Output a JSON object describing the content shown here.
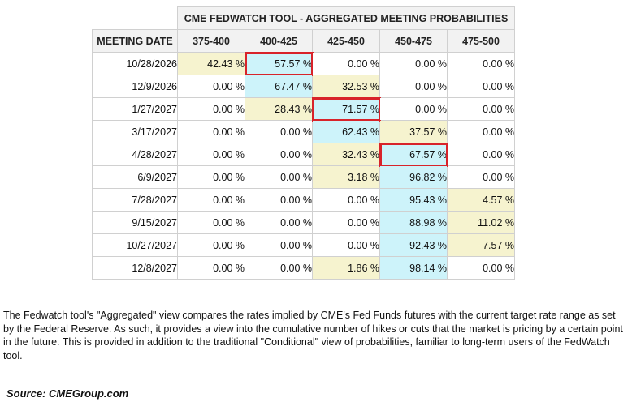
{
  "table": {
    "title": "CME FEDWATCH TOOL - AGGREGATED MEETING PROBABILITIES",
    "date_header": "MEETING DATE",
    "columns": [
      "375-400",
      "400-425",
      "425-450",
      "450-475",
      "475-500"
    ],
    "rows": [
      {
        "date": "10/28/2026",
        "values": [
          "42.43 %",
          "57.57 %",
          "0.00 %",
          "0.00 %",
          "0.00 %"
        ],
        "shade": [
          "low",
          "peak",
          "",
          "",
          ""
        ],
        "highlight": 1
      },
      {
        "date": "12/9/2026",
        "values": [
          "0.00 %",
          "67.47 %",
          "32.53 %",
          "0.00 %",
          "0.00 %"
        ],
        "shade": [
          "",
          "peak",
          "low",
          "",
          ""
        ],
        "highlight": -1
      },
      {
        "date": "1/27/2027",
        "values": [
          "0.00 %",
          "28.43 %",
          "71.57 %",
          "0.00 %",
          "0.00 %"
        ],
        "shade": [
          "",
          "low",
          "peak",
          "",
          ""
        ],
        "highlight": 2
      },
      {
        "date": "3/17/2027",
        "values": [
          "0.00 %",
          "0.00 %",
          "62.43 %",
          "37.57 %",
          "0.00 %"
        ],
        "shade": [
          "",
          "",
          "peak",
          "low",
          ""
        ],
        "highlight": -1
      },
      {
        "date": "4/28/2027",
        "values": [
          "0.00 %",
          "0.00 %",
          "32.43 %",
          "67.57 %",
          "0.00 %"
        ],
        "shade": [
          "",
          "",
          "low",
          "peak",
          ""
        ],
        "highlight": 3
      },
      {
        "date": "6/9/2027",
        "values": [
          "0.00 %",
          "0.00 %",
          "3.18 %",
          "96.82 %",
          "0.00 %"
        ],
        "shade": [
          "",
          "",
          "low",
          "peak",
          ""
        ],
        "highlight": -1
      },
      {
        "date": "7/28/2027",
        "values": [
          "0.00 %",
          "0.00 %",
          "0.00 %",
          "95.43 %",
          "4.57 %"
        ],
        "shade": [
          "",
          "",
          "",
          "peak",
          "low"
        ],
        "highlight": -1
      },
      {
        "date": "9/15/2027",
        "values": [
          "0.00 %",
          "0.00 %",
          "0.00 %",
          "88.98 %",
          "11.02 %"
        ],
        "shade": [
          "",
          "",
          "",
          "peak",
          "low"
        ],
        "highlight": -1
      },
      {
        "date": "10/27/2027",
        "values": [
          "0.00 %",
          "0.00 %",
          "0.00 %",
          "92.43 %",
          "7.57 %"
        ],
        "shade": [
          "",
          "",
          "",
          "peak",
          "low"
        ],
        "highlight": -1
      },
      {
        "date": "12/8/2027",
        "values": [
          "0.00 %",
          "0.00 %",
          "1.86 %",
          "98.14 %",
          "0.00 %"
        ],
        "shade": [
          "",
          "",
          "low",
          "peak",
          ""
        ],
        "highlight": -1
      }
    ]
  },
  "colors": {
    "low_shade": "#f6f3cf",
    "peak_shade": "#cdf3fa",
    "highlight_border": "#d8232a",
    "header_bg": "#f2f2f2"
  },
  "description": "The Fedwatch tool's \"Aggregated\" view compares the rates implied by CME's Fed Funds futures with the current target rate range as set by the Federal Reserve. As such, it provides a view into the cumulative number of hikes or cuts that the market is pricing by a certain point in the future. This is provided in addition to the traditional \"Conditional\" view of probabilities, familiar to long-term users of the FedWatch tool.",
  "source": "Source:  CMEGroup.com"
}
